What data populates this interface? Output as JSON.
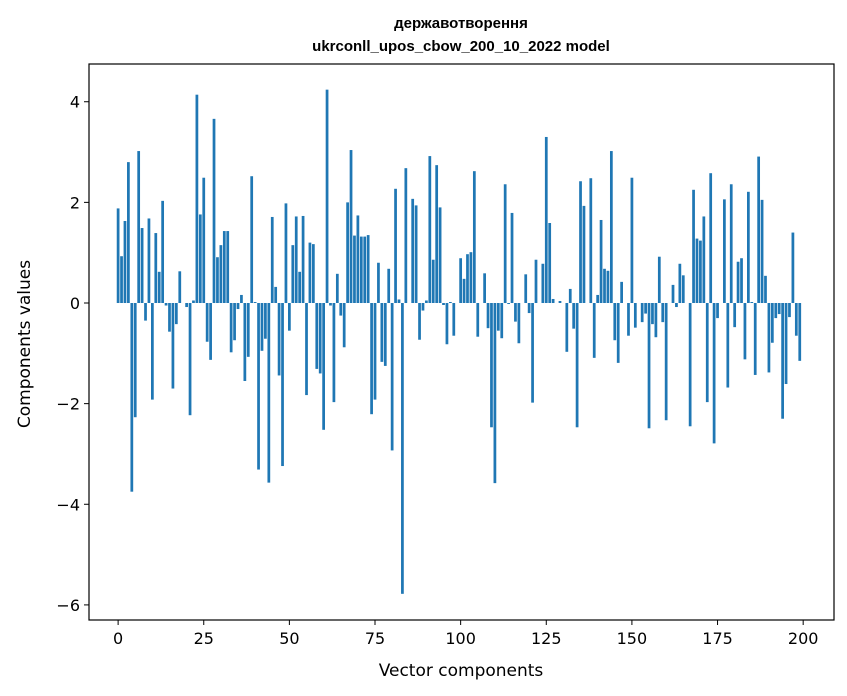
{
  "chart_data": {
    "type": "bar",
    "title_line1": "державотворення",
    "title_line2": "ukrconll_upos_cbow_200_10_2022 model",
    "xlabel": "Vector components",
    "ylabel": "Components values",
    "xlim": [
      -8.5,
      209
    ],
    "ylim": [
      -6.3,
      4.75
    ],
    "xticks": [
      0,
      25,
      50,
      75,
      100,
      125,
      150,
      175,
      200
    ],
    "yticks": [
      -6,
      -4,
      -2,
      0,
      2,
      4
    ],
    "ytick_labels": [
      "−6",
      "−4",
      "−2",
      "0",
      "2",
      "4"
    ],
    "grid": false,
    "legend": "none",
    "bar_color": "#1f77b4",
    "values": [
      1.88,
      0.93,
      1.63,
      2.8,
      -3.75,
      -2.27,
      3.02,
      1.49,
      -0.35,
      1.68,
      -1.92,
      1.39,
      0.62,
      2.03,
      -0.05,
      -0.57,
      -1.7,
      -0.42,
      0.63,
      0.0,
      -0.08,
      -2.23,
      0.05,
      4.14,
      1.76,
      2.49,
      -0.77,
      -1.13,
      3.66,
      0.91,
      1.15,
      1.43,
      1.43,
      -0.98,
      -0.74,
      -0.12,
      0.16,
      -1.55,
      -1.07,
      2.52,
      0.02,
      -3.31,
      -0.95,
      -0.71,
      -3.57,
      1.71,
      0.32,
      -1.44,
      -3.24,
      1.98,
      -0.55,
      1.15,
      1.72,
      0.62,
      1.73,
      -1.83,
      1.2,
      1.17,
      -1.31,
      -1.4,
      -2.52,
      4.24,
      -0.05,
      -1.97,
      0.58,
      -0.25,
      -0.88,
      2.0,
      3.04,
      1.34,
      1.74,
      1.32,
      1.32,
      1.35,
      -2.21,
      -1.92,
      0.8,
      -1.17,
      -1.25,
      0.68,
      -2.93,
      2.27,
      0.07,
      -5.78,
      2.68,
      0.0,
      2.07,
      1.94,
      -0.73,
      -0.15,
      0.05,
      2.92,
      0.86,
      2.74,
      1.9,
      -0.04,
      -0.82,
      0.02,
      -0.65,
      0.0,
      0.89,
      0.48,
      0.97,
      1.01,
      2.62,
      -0.67,
      0.0,
      0.59,
      -0.5,
      -2.47,
      -3.58,
      -0.55,
      -0.7,
      2.36,
      -0.02,
      1.79,
      -0.37,
      -0.8,
      0.0,
      0.57,
      -0.2,
      -1.98,
      0.86,
      0.0,
      0.78,
      3.3,
      1.59,
      0.08,
      0.0,
      0.04,
      0.0,
      -0.97,
      0.28,
      -0.51,
      -2.47,
      2.42,
      1.93,
      0.0,
      2.48,
      -1.09,
      0.16,
      1.65,
      0.68,
      0.64,
      3.02,
      -0.74,
      -1.19,
      0.42,
      0.0,
      -0.65,
      2.49,
      -0.49,
      0.0,
      -0.38,
      -0.21,
      -2.49,
      -0.42,
      -0.68,
      0.92,
      -0.38,
      -2.33,
      0.0,
      0.36,
      -0.08,
      0.78,
      0.55,
      0.0,
      -2.45,
      2.25,
      1.28,
      1.24,
      1.72,
      -1.97,
      2.58,
      -2.79,
      -0.3,
      0.0,
      2.06,
      -1.68,
      2.36,
      -0.48,
      0.82,
      0.89,
      -1.12,
      2.21,
      0.02,
      -1.43,
      2.91,
      2.05,
      0.54,
      -1.38,
      -0.79,
      -0.3,
      -0.22,
      -2.3,
      -1.61,
      -0.28,
      1.4,
      -0.65,
      -1.15
    ]
  }
}
